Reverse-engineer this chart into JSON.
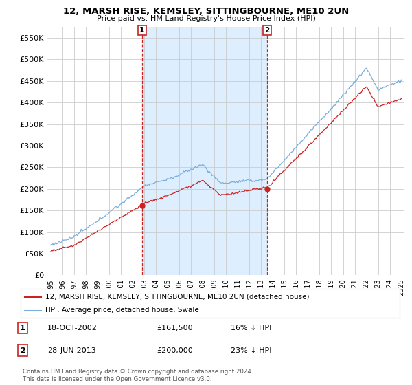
{
  "title": "12, MARSH RISE, KEMSLEY, SITTINGBOURNE, ME10 2UN",
  "subtitle": "Price paid vs. HM Land Registry's House Price Index (HPI)",
  "yticks": [
    0,
    50000,
    100000,
    150000,
    200000,
    250000,
    300000,
    350000,
    400000,
    450000,
    500000,
    550000
  ],
  "ylim": [
    0,
    575000
  ],
  "hpi_color": "#7aaddb",
  "price_color": "#cc2222",
  "shade_color": "#ddeeff",
  "sale1": {
    "year": 2002.8,
    "price": 161500,
    "date": "18-OCT-2002",
    "pct": "16%",
    "dir": "↓"
  },
  "sale2": {
    "year": 2013.5,
    "price": 200000,
    "date": "28-JUN-2013",
    "pct": "23%",
    "dir": "↓"
  },
  "legend_label_price": "12, MARSH RISE, KEMSLEY, SITTINGBOURNE, ME10 2UN (detached house)",
  "legend_label_hpi": "HPI: Average price, detached house, Swale",
  "footer": "Contains HM Land Registry data © Crown copyright and database right 2024.\nThis data is licensed under the Open Government Licence v3.0.",
  "background_color": "#ffffff",
  "grid_color": "#cccccc",
  "xlim_left": 1995.0,
  "xlim_right": 2025.2
}
